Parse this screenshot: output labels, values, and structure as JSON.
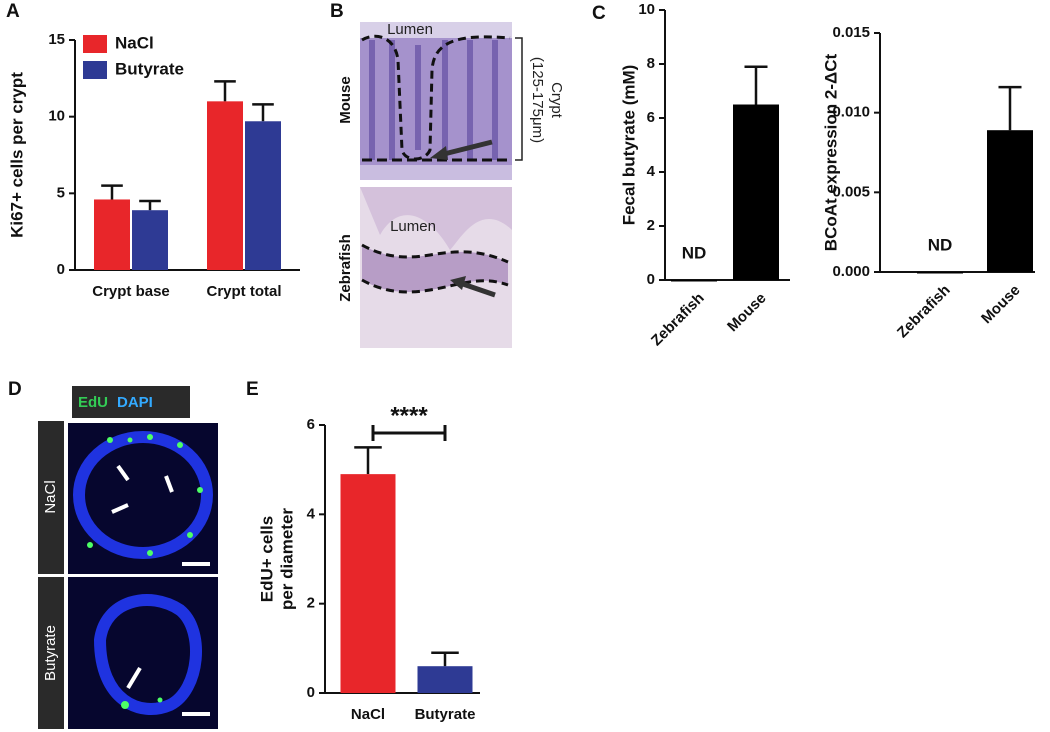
{
  "panel_labels": [
    "A",
    "B",
    "C",
    "D",
    "E"
  ],
  "images": {
    "b": {
      "mouse": "Mouse",
      "zebrafish": "Zebrafish",
      "lumen_top": "Lumen",
      "lumen_bottom": "Lumen",
      "crypt": "Crypt",
      "crypt_size": "(125-175μm)"
    },
    "d": {
      "stain_1": "EdU",
      "stain_2": "DAPI",
      "row_1": "NaCl",
      "row_2": "Butyrate"
    }
  },
  "chart_data": [
    {
      "type": "bar",
      "y_label": "Ki67+ cells per crypt",
      "categories": [
        "Crypt base",
        "Crypt total"
      ],
      "series": [
        {
          "name": "NaCl",
          "color": "#e8262a",
          "values": [
            4.6,
            11.0
          ],
          "errors": [
            0.9,
            1.3
          ]
        },
        {
          "name": "Butyrate",
          "color": "#2e3a94",
          "values": [
            3.9,
            9.7
          ],
          "errors": [
            0.6,
            1.1
          ]
        }
      ],
      "ylim": [
        0,
        15
      ],
      "yticks": [
        0,
        5,
        10,
        15
      ],
      "legend": "upper left"
    },
    {
      "type": "bar",
      "y_label": "Fecal butyrate (mM)",
      "categories": [
        "Zebrafish",
        "Mouse"
      ],
      "values": [
        0,
        6.5
      ],
      "errors": [
        null,
        1.4
      ],
      "color": "#000000",
      "annotations": [
        "ND"
      ],
      "ylim": [
        0,
        10
      ],
      "yticks": [
        0,
        2,
        4,
        6,
        8,
        10
      ]
    },
    {
      "type": "bar",
      "y_label": "BCoAt expression 2-ΔCt",
      "categories": [
        "Zebrafish",
        "Mouse"
      ],
      "values": [
        0,
        0.0089
      ],
      "errors": [
        null,
        0.0027
      ],
      "color": "#000000",
      "annotations": [
        "ND"
      ],
      "ylim": [
        0,
        0.015
      ],
      "yticks": [
        {
          "value": 0,
          "label": "0.000"
        },
        {
          "value": 0.005,
          "label": "0.005"
        },
        {
          "value": 0.01,
          "label": "0.010"
        },
        {
          "value": 0.015,
          "label": "0.015"
        }
      ]
    },
    {
      "type": "bar",
      "y_label": [
        "EdU+ cells",
        "per diameter"
      ],
      "categories": [
        "NaCl",
        "Butyrate"
      ],
      "values": [
        4.9,
        0.6
      ],
      "errors": [
        0.6,
        0.3
      ],
      "colors": [
        "#e8262a",
        "#2e3a94"
      ],
      "significance": "****",
      "ylim": [
        0,
        6
      ],
      "yticks": [
        0,
        2,
        4,
        6
      ]
    }
  ]
}
